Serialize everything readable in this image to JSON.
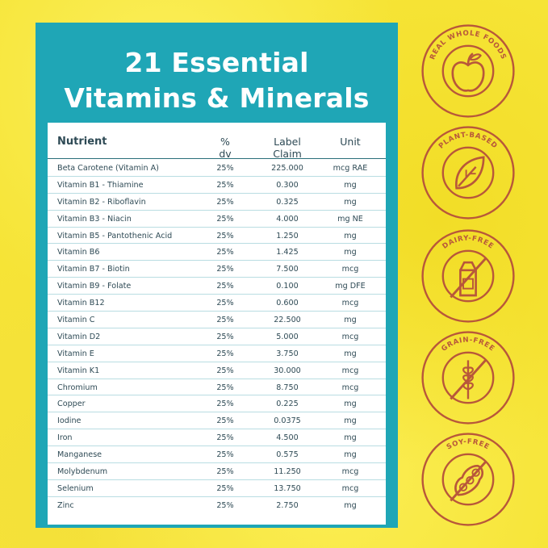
{
  "title": {
    "line1": "21 Essential",
    "line2": "Vitamins & Minerals"
  },
  "table": {
    "headers": {
      "nutrient": "Nutrient",
      "dv": "% dv",
      "claim": "Label Claim",
      "unit": "Unit"
    },
    "rows": [
      {
        "nutrient": "Beta Carotene (Vitamin A)",
        "dv": "25%",
        "claim": "225.000",
        "unit": "mcg RAE"
      },
      {
        "nutrient": "Vitamin B1 - Thiamine",
        "dv": "25%",
        "claim": "0.300",
        "unit": "mg"
      },
      {
        "nutrient": "Vitamin B2 - Riboflavin",
        "dv": "25%",
        "claim": "0.325",
        "unit": "mg"
      },
      {
        "nutrient": "Vitamin B3 - Niacin",
        "dv": "25%",
        "claim": "4.000",
        "unit": "mg NE"
      },
      {
        "nutrient": "Vitamin B5 - Pantothenic Acid",
        "dv": "25%",
        "claim": "1.250",
        "unit": "mg"
      },
      {
        "nutrient": "Vitamin B6",
        "dv": "25%",
        "claim": "1.425",
        "unit": "mg"
      },
      {
        "nutrient": "Vitamin B7 - Biotin",
        "dv": "25%",
        "claim": "7.500",
        "unit": "mcg"
      },
      {
        "nutrient": "Vitamin B9 - Folate",
        "dv": "25%",
        "claim": "0.100",
        "unit": "mg DFE"
      },
      {
        "nutrient": "Vitamin B12",
        "dv": "25%",
        "claim": "0.600",
        "unit": "mcg"
      },
      {
        "nutrient": "Vitamin C",
        "dv": "25%",
        "claim": "22.500",
        "unit": "mg"
      },
      {
        "nutrient": "Vitamin D2",
        "dv": "25%",
        "claim": "5.000",
        "unit": "mcg"
      },
      {
        "nutrient": "Vitamin E",
        "dv": "25%",
        "claim": "3.750",
        "unit": "mg"
      },
      {
        "nutrient": "Vitamin K1",
        "dv": "25%",
        "claim": "30.000",
        "unit": "mcg"
      },
      {
        "nutrient": "Chromium",
        "dv": "25%",
        "claim": "8.750",
        "unit": "mcg"
      },
      {
        "nutrient": "Copper",
        "dv": "25%",
        "claim": "0.225",
        "unit": "mg"
      },
      {
        "nutrient": "Iodine",
        "dv": "25%",
        "claim": "0.0375",
        "unit": "mg"
      },
      {
        "nutrient": "Iron",
        "dv": "25%",
        "claim": "4.500",
        "unit": "mg"
      },
      {
        "nutrient": "Manganese",
        "dv": "25%",
        "claim": "0.575",
        "unit": "mg"
      },
      {
        "nutrient": "Molybdenum",
        "dv": "25%",
        "claim": "11.250",
        "unit": "mcg"
      },
      {
        "nutrient": "Selenium",
        "dv": "25%",
        "claim": "13.750",
        "unit": "mcg"
      },
      {
        "nutrient": "Zinc",
        "dv": "25%",
        "claim": "2.750",
        "unit": "mg"
      }
    ]
  },
  "badges": [
    {
      "label": "REAL WHOLE FOODS",
      "icon": "apple-icon"
    },
    {
      "label": "PLANT-BASED",
      "icon": "leaf-icon"
    },
    {
      "label": "DAIRY-FREE",
      "icon": "milk-carton-crossed-icon"
    },
    {
      "label": "GRAIN-FREE",
      "icon": "wheat-crossed-icon"
    },
    {
      "label": "SOY-FREE",
      "icon": "soybean-crossed-icon"
    }
  ],
  "colors": {
    "panel": "#1fa6b6",
    "badge": "#b8573a",
    "background": "#f6e436"
  }
}
